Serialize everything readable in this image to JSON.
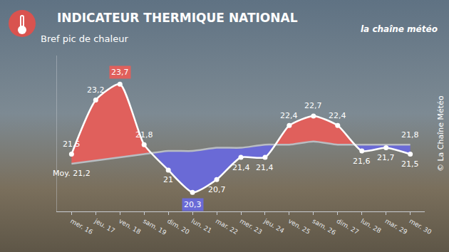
{
  "chart_data": {
    "type": "line",
    "title": "INDICATEUR THERMIQUE NATIONAL",
    "subtitle": "Bref pic de chaleur",
    "categories": [
      "mer. 16",
      "jeu. 17",
      "ven. 18",
      "sam. 19",
      "dim. 20",
      "lun. 21",
      "mar. 22",
      "mer. 23",
      "jeu. 24",
      "ven. 25",
      "sam. 26",
      "dim. 27",
      "lun. 28",
      "mar. 29",
      "mer. 30"
    ],
    "series": [
      {
        "color": "#ffffff",
        "marker": "circle",
        "values": [
          21.5,
          23.2,
          23.7,
          21.8,
          21,
          20.3,
          20.7,
          21.4,
          21.4,
          22.4,
          22.7,
          22.4,
          21.6,
          21.7,
          21.5
        ],
        "value_labels": [
          "21,5",
          "23,2",
          "23,7",
          "21,8",
          "21",
          "20,3",
          "20,7",
          "21,4",
          "21,4",
          "22,4",
          "22,7",
          "22,4",
          "21,6",
          "21,7",
          "21,5"
        ]
      },
      {
        "color": "#b9bdc2",
        "values": [
          21.2,
          21.3,
          21.4,
          21.5,
          21.6,
          21.6,
          21.7,
          21.7,
          21.8,
          21.8,
          21.9,
          21.8,
          21.8,
          21.8,
          21.8
        ],
        "value_labels": [
          "Moy. 21,2",
          null,
          null,
          null,
          null,
          null,
          null,
          null,
          null,
          null,
          null,
          null,
          null,
          null,
          "21,8"
        ]
      }
    ],
    "ylim": [
      19.7,
      24.6
    ],
    "yticks": [],
    "grid": false,
    "data_labels": true,
    "tick_labels": "x",
    "annotations": [
      {
        "text": "la chaîne météo"
      },
      {
        "text": "© La Chaîne Météo"
      }
    ]
  }
}
